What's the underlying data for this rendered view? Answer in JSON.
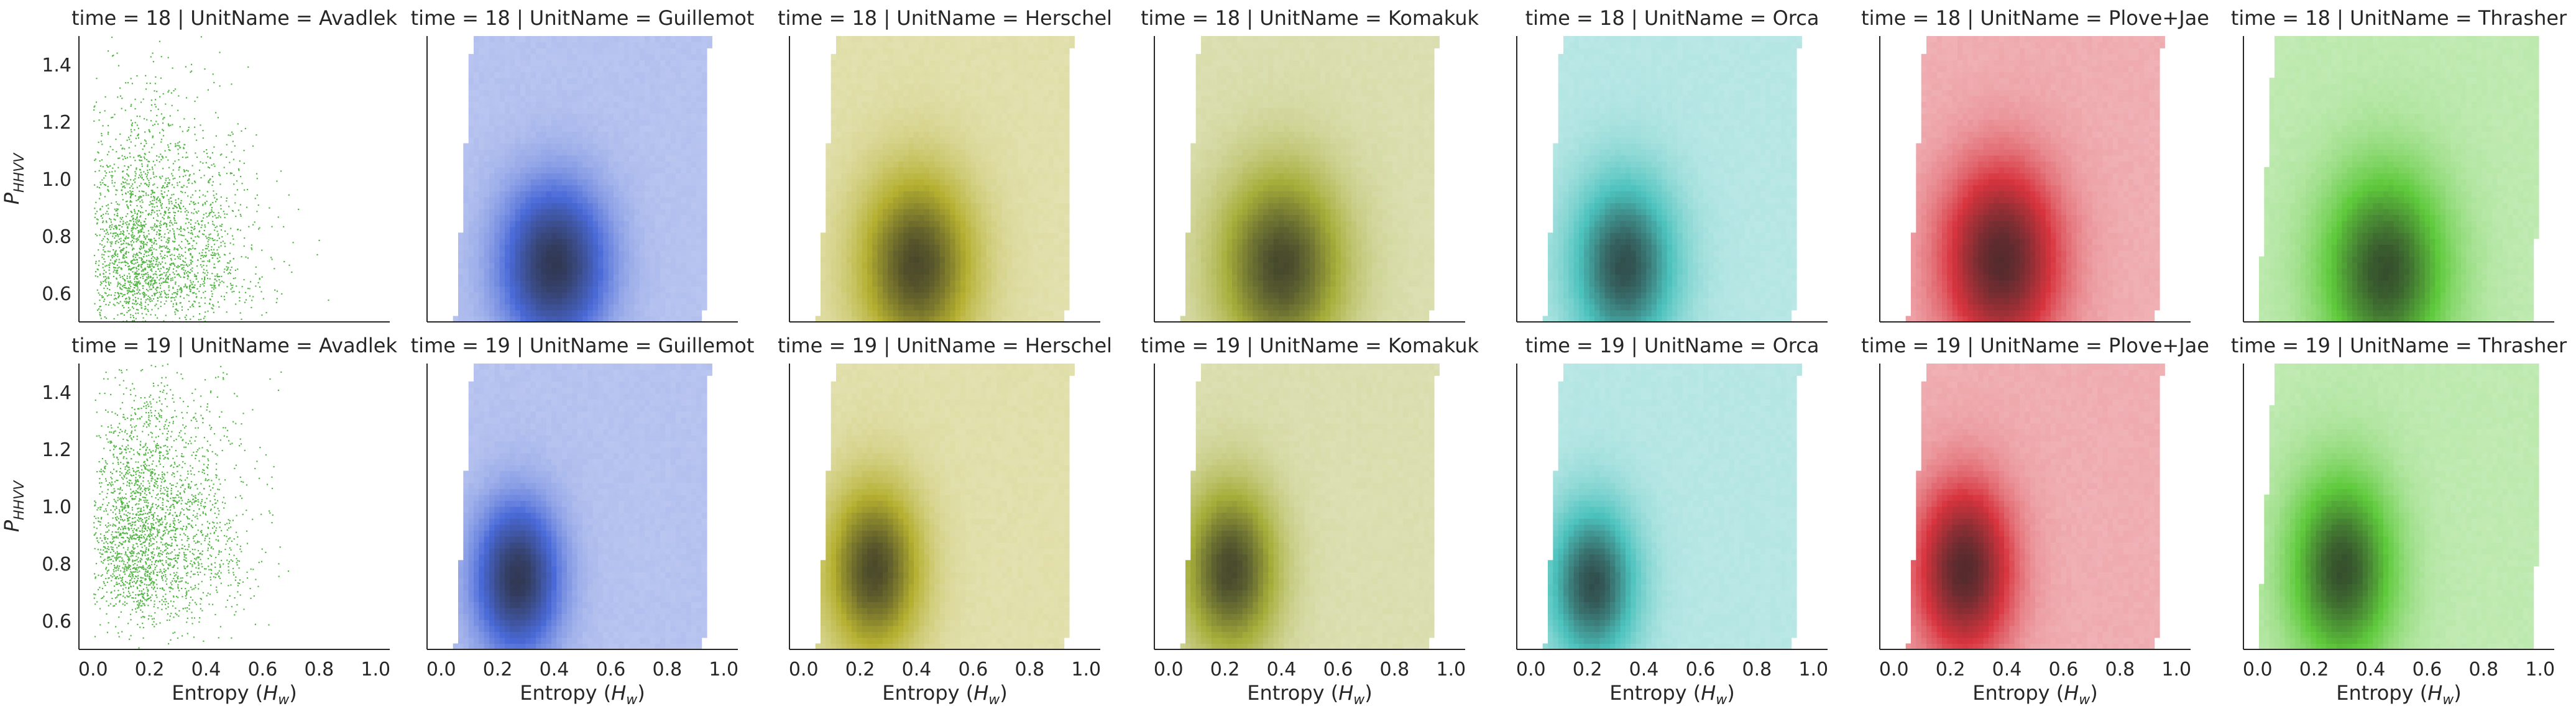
{
  "chart_data": {
    "type": "heatmap",
    "facet_rows": {
      "variable": "time",
      "values": [
        "18",
        "19"
      ]
    },
    "facet_cols": {
      "variable": "UnitName",
      "values": [
        "Avadlek",
        "Guillemot",
        "Herschel",
        "Komakuk",
        "Orca",
        "Plove+Jae",
        "Thrasher"
      ]
    },
    "titles": [
      "time = 18 | UnitName = Avadlek",
      "time = 18 | UnitName = Guillemot",
      "time = 18 | UnitName = Herschel",
      "time = 18 | UnitName = Komakuk",
      "time = 18 | UnitName = Orca",
      "time = 18 | UnitName = Plove+Jae",
      "time = 18 | UnitName = Thrasher",
      "time = 19 | UnitName = Avadlek",
      "time = 19 | UnitName = Guillemot",
      "time = 19 | UnitName = Herschel",
      "time = 19 | UnitName = Komakuk",
      "time = 19 | UnitName = Orca",
      "time = 19 | UnitName = Plove+Jae",
      "time = 19 | UnitName = Thrasher"
    ],
    "xlabel": "Entropy (",
    "xlabel_var": "H",
    "xlabel_sub": "w",
    "xlabel_close": ")",
    "ylabel": "P",
    "ylabel_sub": "HHVV",
    "xlim": [
      -0.05,
      1.05
    ],
    "ylim": [
      0.5,
      1.5
    ],
    "xticks": [
      "0.0",
      "0.2",
      "0.4",
      "0.6",
      "0.8",
      "1.0"
    ],
    "yticks": [
      "0.6",
      "0.8",
      "1.0",
      "1.2",
      "1.4"
    ],
    "grid": false,
    "colors": {
      "Avadlek": "#55b748",
      "Guillemot": "#4a6ad8",
      "Herschel": "#b5b030",
      "Komakuk": "#a6ae3a",
      "Orca": "#4cc2bd",
      "Plove+Jae": "#d8343e",
      "Thrasher": "#5fca3c"
    },
    "panels": [
      {
        "time": "18",
        "unit": "Avadlek",
        "style": "scatter",
        "center": [
          0.2,
          0.66
        ],
        "spread": [
          0.18,
          0.28
        ],
        "x_range": [
          0.0,
          0.85
        ],
        "y_top": 1.5
      },
      {
        "time": "18",
        "unit": "Guillemot",
        "style": "hist",
        "center": [
          0.4,
          0.7
        ],
        "spread": [
          0.2,
          0.3
        ],
        "x_range": [
          0.05,
          0.95
        ],
        "y_top": 1.5
      },
      {
        "time": "18",
        "unit": "Herschel",
        "style": "hist",
        "center": [
          0.4,
          0.7
        ],
        "spread": [
          0.22,
          0.35
        ],
        "x_range": [
          0.05,
          0.95
        ],
        "y_top": 1.5
      },
      {
        "time": "18",
        "unit": "Komakuk",
        "style": "hist",
        "center": [
          0.4,
          0.7
        ],
        "spread": [
          0.24,
          0.36
        ],
        "x_range": [
          0.05,
          0.95
        ],
        "y_top": 1.5
      },
      {
        "time": "18",
        "unit": "Orca",
        "style": "hist",
        "center": [
          0.33,
          0.7
        ],
        "spread": [
          0.2,
          0.33
        ],
        "x_range": [
          0.05,
          0.95
        ],
        "y_top": 1.5
      },
      {
        "time": "18",
        "unit": "Plove+Jae",
        "style": "hist",
        "center": [
          0.38,
          0.72
        ],
        "spread": [
          0.22,
          0.35
        ],
        "x_range": [
          0.05,
          0.95
        ],
        "y_top": 1.5
      },
      {
        "time": "18",
        "unit": "Thrasher",
        "style": "hist",
        "center": [
          0.45,
          0.68
        ],
        "spread": [
          0.24,
          0.38
        ],
        "x_range": [
          0.0,
          1.0
        ],
        "y_top": 1.5
      },
      {
        "time": "19",
        "unit": "Avadlek",
        "style": "scatter",
        "center": [
          0.2,
          0.8
        ],
        "spread": [
          0.16,
          0.3
        ],
        "x_range": [
          0.0,
          0.85
        ],
        "y_top": 1.5
      },
      {
        "time": "19",
        "unit": "Guillemot",
        "style": "hist",
        "center": [
          0.27,
          0.75
        ],
        "spread": [
          0.16,
          0.28
        ],
        "x_range": [
          0.05,
          0.95
        ],
        "y_top": 1.5
      },
      {
        "time": "19",
        "unit": "Herschel",
        "style": "hist",
        "center": [
          0.25,
          0.78
        ],
        "spread": [
          0.18,
          0.32
        ],
        "x_range": [
          0.05,
          0.95
        ],
        "y_top": 1.5
      },
      {
        "time": "19",
        "unit": "Komakuk",
        "style": "hist",
        "center": [
          0.22,
          0.78
        ],
        "spread": [
          0.18,
          0.32
        ],
        "x_range": [
          0.05,
          0.95
        ],
        "y_top": 1.5
      },
      {
        "time": "19",
        "unit": "Orca",
        "style": "hist",
        "center": [
          0.22,
          0.73
        ],
        "spread": [
          0.17,
          0.3
        ],
        "x_range": [
          0.05,
          0.95
        ],
        "y_top": 1.5
      },
      {
        "time": "19",
        "unit": "Plove+Jae",
        "style": "hist",
        "center": [
          0.25,
          0.78
        ],
        "spread": [
          0.18,
          0.32
        ],
        "x_range": [
          0.05,
          0.95
        ],
        "y_top": 1.5
      },
      {
        "time": "19",
        "unit": "Thrasher",
        "style": "hist",
        "center": [
          0.3,
          0.78
        ],
        "spread": [
          0.2,
          0.36
        ],
        "x_range": [
          0.0,
          1.0
        ],
        "y_top": 1.5
      }
    ]
  }
}
